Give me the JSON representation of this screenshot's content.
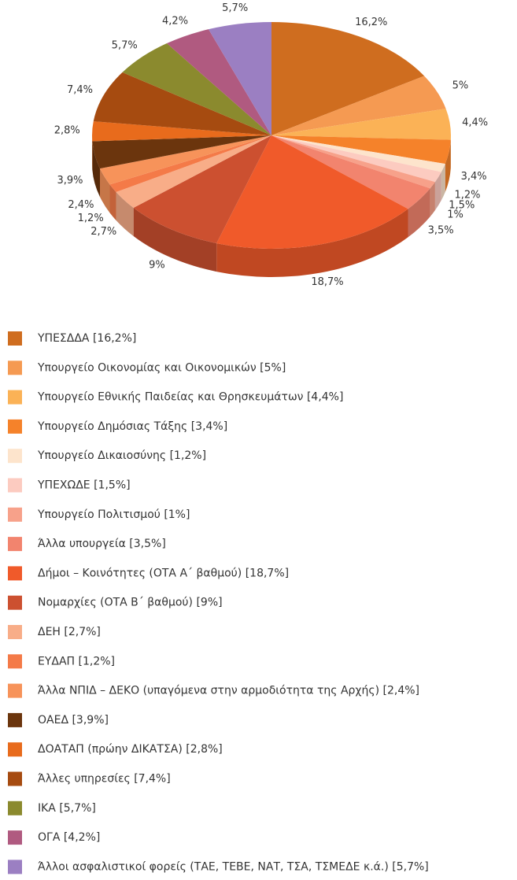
{
  "chart_data": {
    "type": "pie",
    "categories": [
      "ΥΠΕΣΔΔΑ [16,2%]",
      "Υπουργείο Οικονομίας και Οικονομικών [5%]",
      "Υπουργείο Εθνικής Παιδείας και Θρησκευμάτων [4,4%]",
      "Υπουργείο Δημόσιας Τάξης [3,4%]",
      "Υπουργείο Δικαιοσύνης [1,2%]",
      "ΥΠΕΧΩΔΕ [1,5%]",
      "Υπουργείο Πολιτισμού [1%]",
      "Άλλα υπουργεία [3,5%]",
      "Δήμοι – Κοινότητες (ΟΤΑ Α΄ βαθμού) [18,7%]",
      "Νομαρχίες (ΟΤΑ Β΄ βαθμού) [9%]",
      "ΔΕΗ [2,7%]",
      "ΕΥΔΑΠ [1,2%]",
      "Άλλα ΝΠΙΔ – ΔΕΚΟ (υπαγόμενα στην αρμοδιότητα της Αρχής) [2,4%]",
      "ΟΑΕΔ [3,9%]",
      "ΔΟΑΤΑΠ (πρώην ΔΙΚΑΤΣΑ) [2,8%]",
      "Άλλες υπηρεσίες [7,4%]",
      "ΙΚΑ [5,7%]",
      "ΟΓΑ [4,2%]",
      "Άλλοι ασφαλιστικοί φορείς (ΤΑΕ, ΤΕΒΕ, ΝΑΤ, ΤΣΑ, ΤΣΜΕΔΕ κ.ά.) [5,7%]"
    ],
    "values": [
      16.2,
      5,
      4.4,
      3.4,
      1.2,
      1.5,
      1,
      3.5,
      18.7,
      9,
      2.7,
      1.2,
      2.4,
      3.9,
      2.8,
      7.4,
      5.7,
      4.2,
      5.7
    ],
    "value_labels": [
      "16,2%",
      "5%",
      "4,4%",
      "3,4%",
      "1,2%",
      "1,5%",
      "1%",
      "3,5%",
      "18,7%",
      "9%",
      "2,7%",
      "1,2%",
      "2,4%",
      "3,9%",
      "2,8%",
      "7,4%",
      "5,7%",
      "4,2%",
      "5,7%"
    ],
    "colors": [
      "#cf6d1f",
      "#f59a52",
      "#fbb256",
      "#f5822a",
      "#fde4cc",
      "#fccbc0",
      "#f7a18a",
      "#f2846e",
      "#f05a2a",
      "#cc5030",
      "#f8ad88",
      "#f47a48",
      "#f7935a",
      "#6b350d",
      "#e86b1c",
      "#a64b10",
      "#8b8a2e",
      "#b05a80",
      "#9b7fc2"
    ]
  }
}
